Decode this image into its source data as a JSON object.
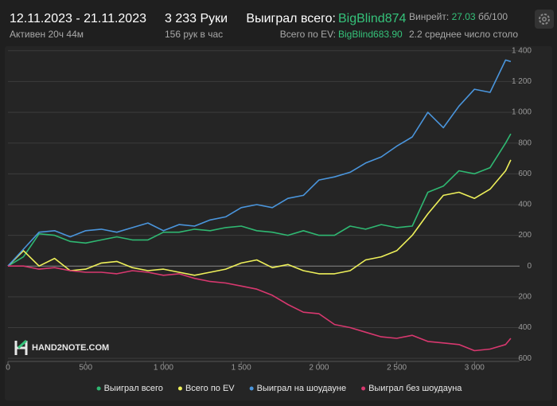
{
  "header": {
    "date_range": "12.11.2023 - 21.11.2023",
    "active": "Активен 20ч 44м",
    "hands": "3 233 Руки",
    "per_hour": "156 рук в час",
    "won_label": "Выиграл всего:",
    "won_value": "BigBlind874",
    "ev_label": "Всего по EV:",
    "ev_value": "BigBlind683.90",
    "winrate_label": "Винрейт:",
    "winrate_value": "27.03",
    "winrate_unit": "бб/100",
    "tables": "2.2 среднее число столо"
  },
  "chart_data": {
    "type": "line",
    "watermark": "HAND2NOTE.COM",
    "x": [
      0,
      100,
      200,
      300,
      400,
      500,
      600,
      700,
      800,
      900,
      1000,
      1100,
      1200,
      1300,
      1400,
      1500,
      1600,
      1700,
      1800,
      1900,
      2000,
      2100,
      2200,
      2300,
      2400,
      2500,
      2600,
      2700,
      2800,
      2900,
      3000,
      3100,
      3200,
      3233
    ],
    "series": [
      {
        "name": "Выиграл всего",
        "color": "#2fb872",
        "values": [
          0,
          60,
          210,
          200,
          160,
          150,
          170,
          190,
          170,
          170,
          220,
          220,
          240,
          230,
          250,
          260,
          230,
          220,
          200,
          230,
          200,
          200,
          260,
          240,
          270,
          250,
          260,
          480,
          520,
          620,
          600,
          640,
          800,
          860
        ]
      },
      {
        "name": "Всего по EV",
        "color": "#eef05a",
        "values": [
          0,
          100,
          0,
          50,
          -30,
          -20,
          20,
          30,
          -10,
          -30,
          -20,
          -40,
          -60,
          -40,
          -20,
          20,
          40,
          -10,
          10,
          -30,
          -50,
          -50,
          -30,
          40,
          60,
          100,
          200,
          340,
          460,
          480,
          440,
          500,
          620,
          690
        ]
      },
      {
        "name": "Выиграл на шоудауне",
        "color": "#4a95dc",
        "values": [
          0,
          110,
          220,
          230,
          190,
          230,
          240,
          220,
          250,
          280,
          230,
          270,
          260,
          300,
          320,
          380,
          400,
          380,
          440,
          460,
          560,
          580,
          610,
          670,
          710,
          780,
          840,
          1000,
          900,
          1040,
          1150,
          1130,
          1340,
          1330
        ]
      },
      {
        "name": "Выиграл без шоудауна",
        "color": "#d8386f",
        "values": [
          0,
          0,
          -20,
          -10,
          -30,
          -40,
          -40,
          -50,
          -30,
          -40,
          -60,
          -50,
          -80,
          -100,
          -110,
          -130,
          -150,
          -190,
          -250,
          -300,
          -310,
          -380,
          -400,
          -430,
          -460,
          -470,
          -450,
          -490,
          -500,
          -510,
          -550,
          -540,
          -510,
          -470
        ]
      }
    ],
    "xlim": [
      0,
      3290
    ],
    "xticks": [
      0,
      500,
      {
        "value": 1000,
        "label": "1 000"
      },
      {
        "value": 1500,
        "label": "1 500"
      },
      {
        "value": 2000,
        "label": "2 000"
      },
      {
        "value": 2500,
        "label": "2 500"
      },
      {
        "value": 3000,
        "label": "3 000"
      }
    ],
    "ylim": [
      -620,
      1430
    ],
    "yticks": [
      {
        "value": -600,
        "label": "600"
      },
      {
        "value": -400,
        "label": "400"
      },
      {
        "value": -200,
        "label": "200"
      },
      0,
      200,
      400,
      600,
      800,
      {
        "value": 1000,
        "label": "1 000"
      },
      {
        "value": 1200,
        "label": "1 200"
      },
      {
        "value": 1400,
        "label": "1 400"
      }
    ],
    "grid": true,
    "legend": "bottom"
  }
}
